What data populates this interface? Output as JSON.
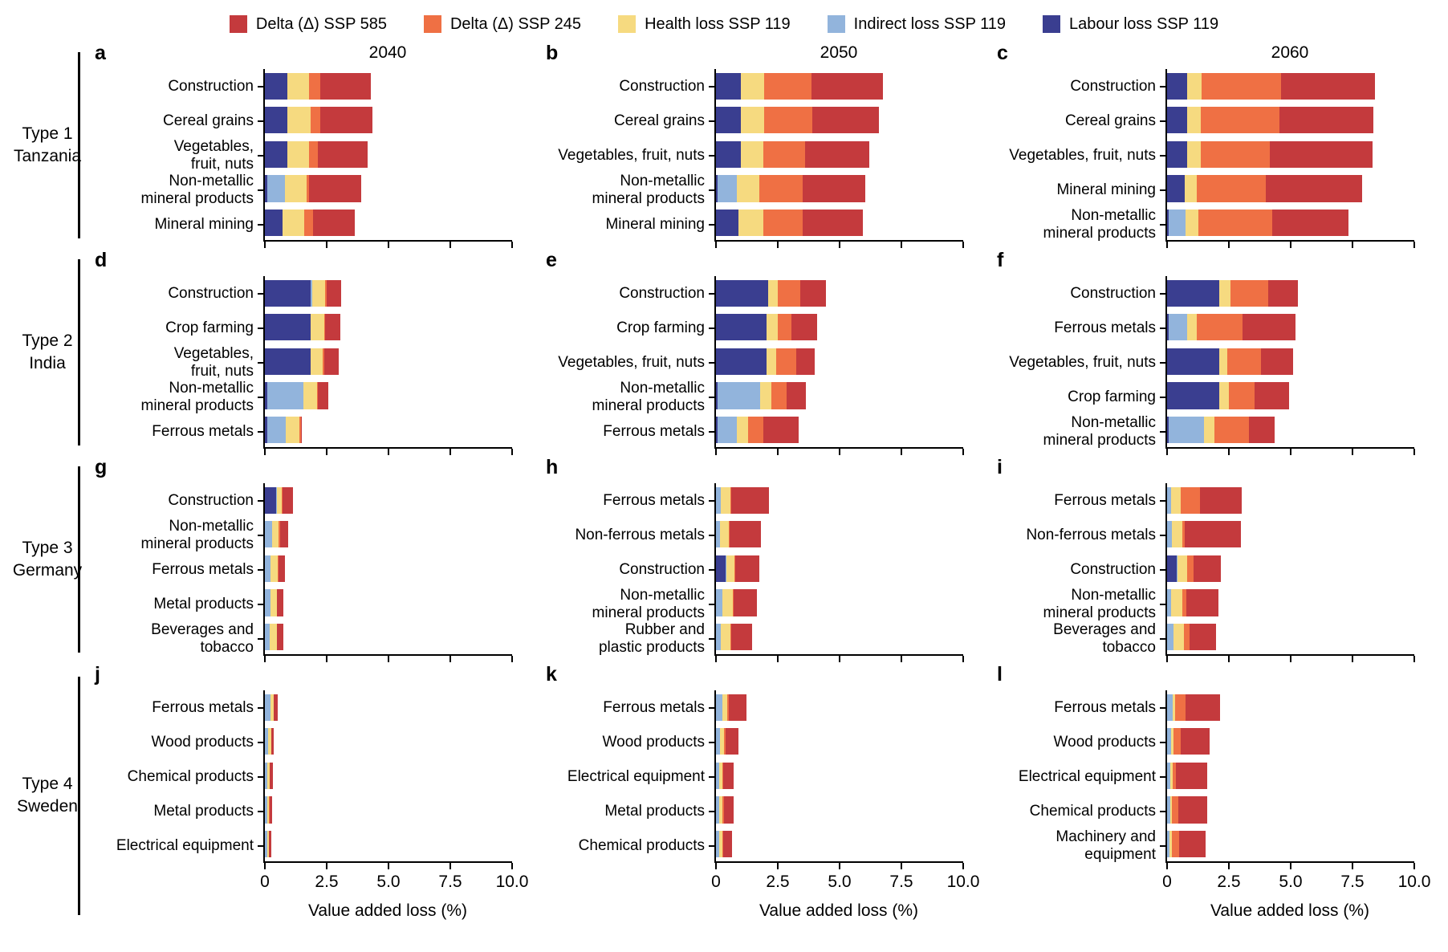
{
  "legend": [
    {
      "label": "Delta (Δ) SSP 585",
      "color": "delta585"
    },
    {
      "label": "Delta (Δ) SSP 245",
      "color": "delta245"
    },
    {
      "label": "Health loss SSP 119",
      "color": "health"
    },
    {
      "label": "Indirect loss SSP 119",
      "color": "indirect"
    },
    {
      "label": "Labour loss SSP 119",
      "color": "labour"
    }
  ],
  "colors": {
    "delta585": "#c43a3d",
    "delta245": "#ef7044",
    "health": "#f6da80",
    "indirect": "#92b4dc",
    "labour": "#3a3e90"
  },
  "columns": [
    "2040",
    "2050",
    "2060"
  ],
  "rows": [
    {
      "type": "Type 1",
      "country": "Tanzania"
    },
    {
      "type": "Type 2",
      "country": "India"
    },
    {
      "type": "Type 3",
      "country": "Germany"
    },
    {
      "type": "Type 4",
      "country": "Sweden"
    }
  ],
  "axis": {
    "label": "Value added loss (%)",
    "max": 10,
    "tick_values": [
      0,
      2.5,
      5.0,
      7.5,
      10.0
    ],
    "tick_labels": [
      "0",
      "2.5",
      "5.0",
      "7.5",
      "10.0"
    ]
  },
  "chart_data": {
    "type": "bar",
    "orientation": "horizontal",
    "stacked": true,
    "xlim": [
      0,
      10
    ],
    "series_order": [
      "labour",
      "indirect",
      "health",
      "delta245",
      "delta585"
    ],
    "series_names": {
      "labour": "Labour loss SSP 119",
      "indirect": "Indirect loss SSP 119",
      "health": "Health loss SSP 119",
      "delta245": "Delta (Δ) SSP 245",
      "delta585": "Delta (Δ) SSP 585"
    },
    "panels": [
      {
        "id": "a",
        "year": "2040",
        "group": "Type 1 Tanzania",
        "bars": [
          {
            "label": "Construction",
            "labour": 0.9,
            "indirect": 0,
            "health": 0.9,
            "delta245": 0.45,
            "delta585": 2.05
          },
          {
            "label": "Cereal grains",
            "labour": 0.9,
            "indirect": 0,
            "health": 0.95,
            "delta245": 0.4,
            "delta585": 2.1
          },
          {
            "label": "Vegetables,\nfruit, nuts",
            "labour": 0.9,
            "indirect": 0,
            "health": 0.9,
            "delta245": 0.35,
            "delta585": 2.0
          },
          {
            "label": "Non-metallic\nmineral products",
            "labour": 0.1,
            "indirect": 0.7,
            "health": 0.9,
            "delta245": 0.1,
            "delta585": 2.1
          },
          {
            "label": "Mineral mining",
            "labour": 0.7,
            "indirect": 0,
            "health": 0.9,
            "delta245": 0.35,
            "delta585": 1.7
          }
        ]
      },
      {
        "id": "b",
        "year": "2050",
        "group": "Type 1 Tanzania",
        "bars": [
          {
            "label": "Construction",
            "labour": 1.0,
            "indirect": 0,
            "health": 0.95,
            "delta245": 1.9,
            "delta585": 2.9
          },
          {
            "label": "Cereal grains",
            "labour": 1.0,
            "indirect": 0,
            "health": 0.95,
            "delta245": 1.95,
            "delta585": 2.7
          },
          {
            "label": "Vegetables, fruit, nuts",
            "labour": 1.0,
            "indirect": 0,
            "health": 0.9,
            "delta245": 1.7,
            "delta585": 2.6
          },
          {
            "label": "Non-metallic\nmineral products",
            "labour": 0.05,
            "indirect": 0.8,
            "health": 0.9,
            "delta245": 1.75,
            "delta585": 2.55
          },
          {
            "label": "Mineral mining",
            "labour": 0.9,
            "indirect": 0,
            "health": 1.0,
            "delta245": 1.6,
            "delta585": 2.45
          }
        ]
      },
      {
        "id": "c",
        "year": "2060",
        "group": "Type 1 Tanzania",
        "bars": [
          {
            "label": "Construction",
            "labour": 0.8,
            "indirect": 0,
            "health": 0.6,
            "delta245": 3.2,
            "delta585": 3.8
          },
          {
            "label": "Cereal grains",
            "labour": 0.8,
            "indirect": 0,
            "health": 0.55,
            "delta245": 3.2,
            "delta585": 3.8
          },
          {
            "label": "Vegetables, fruit, nuts",
            "labour": 0.8,
            "indirect": 0,
            "health": 0.55,
            "delta245": 2.8,
            "delta585": 4.15
          },
          {
            "label": "Mineral mining",
            "labour": 0.7,
            "indirect": 0,
            "health": 0.5,
            "delta245": 2.8,
            "delta585": 3.9
          },
          {
            "label": "Non-metallic\nmineral products",
            "labour": 0.05,
            "indirect": 0.7,
            "health": 0.5,
            "delta245": 3.0,
            "delta585": 3.1
          }
        ]
      },
      {
        "id": "d",
        "year": "2040",
        "group": "Type 2 India",
        "bars": [
          {
            "label": "Construction",
            "labour": 1.85,
            "indirect": 0.05,
            "health": 0.55,
            "delta245": 0.05,
            "delta585": 0.6
          },
          {
            "label": "Crop farming",
            "labour": 1.85,
            "indirect": 0,
            "health": 0.55,
            "delta245": 0.05,
            "delta585": 0.6
          },
          {
            "label": "Vegetables,\nfruit, nuts",
            "labour": 1.85,
            "indirect": 0,
            "health": 0.5,
            "delta245": 0.05,
            "delta585": 0.6
          },
          {
            "label": "Non-metallic\nmineral products",
            "labour": 0.1,
            "indirect": 1.45,
            "health": 0.55,
            "delta245": 0.05,
            "delta585": 0.4
          },
          {
            "label": "Ferrous metals",
            "labour": 0.1,
            "indirect": 0.75,
            "health": 0.55,
            "delta245": 0.05,
            "delta585": 0.05
          }
        ]
      },
      {
        "id": "e",
        "year": "2050",
        "group": "Type 2 India",
        "bars": [
          {
            "label": "Construction",
            "labour": 2.1,
            "indirect": 0,
            "health": 0.4,
            "delta245": 0.9,
            "delta585": 1.05
          },
          {
            "label": "Crop farming",
            "labour": 2.05,
            "indirect": 0,
            "health": 0.45,
            "delta245": 0.55,
            "delta585": 1.05
          },
          {
            "label": "Vegetables, fruit, nuts",
            "labour": 2.05,
            "indirect": 0,
            "health": 0.4,
            "delta245": 0.8,
            "delta585": 0.75
          },
          {
            "label": "Non-metallic\nmineral products",
            "labour": 0.05,
            "indirect": 1.75,
            "health": 0.45,
            "delta245": 0.6,
            "delta585": 0.8
          },
          {
            "label": "Ferrous metals",
            "labour": 0.05,
            "indirect": 0.8,
            "health": 0.45,
            "delta245": 0.6,
            "delta585": 1.45
          }
        ]
      },
      {
        "id": "f",
        "year": "2060",
        "group": "Type 2 India",
        "bars": [
          {
            "label": "Construction",
            "labour": 2.1,
            "indirect": 0,
            "health": 0.45,
            "delta245": 1.55,
            "delta585": 1.2
          },
          {
            "label": "Ferrous metals",
            "labour": 0.05,
            "indirect": 0.75,
            "health": 0.4,
            "delta245": 1.85,
            "delta585": 2.15
          },
          {
            "label": "Vegetables, fruit, nuts",
            "labour": 2.1,
            "indirect": 0,
            "health": 0.35,
            "delta245": 1.35,
            "delta585": 1.3
          },
          {
            "label": "Crop farming",
            "labour": 2.1,
            "indirect": 0,
            "health": 0.4,
            "delta245": 1.05,
            "delta585": 1.4
          },
          {
            "label": "Non-metallic\nmineral products",
            "labour": 0.05,
            "indirect": 1.45,
            "health": 0.4,
            "delta245": 1.4,
            "delta585": 1.05
          }
        ]
      },
      {
        "id": "g",
        "year": "2040",
        "group": "Type 3 Germany",
        "bars": [
          {
            "label": "Construction",
            "labour": 0.45,
            "indirect": 0.05,
            "health": 0.18,
            "delta245": 0.04,
            "delta585": 0.4
          },
          {
            "label": "Non-metallic\nmineral products",
            "labour": 0,
            "indirect": 0.3,
            "health": 0.28,
            "delta245": 0.04,
            "delta585": 0.35
          },
          {
            "label": "Ferrous metals",
            "labour": 0,
            "indirect": 0.25,
            "health": 0.32,
            "delta245": 0.03,
            "delta585": 0.3
          },
          {
            "label": "Metal products",
            "labour": 0,
            "indirect": 0.25,
            "health": 0.3,
            "delta245": 0.03,
            "delta585": 0.28
          },
          {
            "label": "Beverages and tobacco",
            "labour": 0,
            "indirect": 0.23,
            "health": 0.32,
            "delta245": 0.03,
            "delta585": 0.28
          }
        ]
      },
      {
        "id": "h",
        "year": "2050",
        "group": "Type 3 Germany",
        "bars": [
          {
            "label": "Ferrous metals",
            "labour": 0,
            "indirect": 0.18,
            "health": 0.4,
            "delta245": 0.05,
            "delta585": 1.5
          },
          {
            "label": "Non-ferrous metals",
            "labour": 0,
            "indirect": 0.16,
            "health": 0.35,
            "delta245": 0.05,
            "delta585": 1.25
          },
          {
            "label": "Construction",
            "labour": 0.4,
            "indirect": 0.03,
            "health": 0.33,
            "delta245": 0.03,
            "delta585": 0.97
          },
          {
            "label": "Non-metallic\nmineral products",
            "labour": 0,
            "indirect": 0.25,
            "health": 0.43,
            "delta245": 0.03,
            "delta585": 0.95
          },
          {
            "label": "Rubber and\nplastic products",
            "labour": 0,
            "indirect": 0.18,
            "health": 0.4,
            "delta245": 0.03,
            "delta585": 0.85
          }
        ]
      },
      {
        "id": "i",
        "year": "2060",
        "group": "Type 3 Germany",
        "bars": [
          {
            "label": "Ferrous metals",
            "labour": 0,
            "indirect": 0.16,
            "health": 0.4,
            "delta245": 0.77,
            "delta585": 1.7
          },
          {
            "label": "Non-ferrous metals",
            "labour": 0,
            "indirect": 0.18,
            "health": 0.45,
            "delta245": 0.1,
            "delta585": 2.25
          },
          {
            "label": "Construction",
            "labour": 0.38,
            "indirect": 0.03,
            "health": 0.4,
            "delta245": 0.25,
            "delta585": 1.1
          },
          {
            "label": "Non-metallic\nmineral products",
            "labour": 0,
            "indirect": 0.16,
            "health": 0.45,
            "delta245": 0.18,
            "delta585": 1.3
          },
          {
            "label": "Beverages and tobacco",
            "labour": 0,
            "indirect": 0.26,
            "health": 0.43,
            "delta245": 0.23,
            "delta585": 1.05
          }
        ]
      },
      {
        "id": "j",
        "year": "2040",
        "group": "Type 4 Sweden",
        "bars": [
          {
            "label": "Ferrous metals",
            "labour": 0,
            "indirect": 0.3,
            "health": 0.18,
            "delta245": 0.03,
            "delta585": 0.2
          },
          {
            "label": "Wood products",
            "labour": 0,
            "indirect": 0.22,
            "health": 0.18,
            "delta245": 0.03,
            "delta585": 0.18
          },
          {
            "label": "Chemical products",
            "labour": 0,
            "indirect": 0.18,
            "health": 0.15,
            "delta245": 0.03,
            "delta585": 0.2
          },
          {
            "label": "Metal products",
            "labour": 0,
            "indirect": 0.18,
            "health": 0.15,
            "delta245": 0.03,
            "delta585": 0.18
          },
          {
            "label": "Electrical equipment",
            "labour": 0,
            "indirect": 0.18,
            "health": 0.13,
            "delta245": 0.03,
            "delta585": 0.18
          }
        ]
      },
      {
        "id": "k",
        "year": "2050",
        "group": "Type 4 Sweden",
        "bars": [
          {
            "label": "Ferrous metals",
            "labour": 0,
            "indirect": 0.27,
            "health": 0.2,
            "delta245": 0.05,
            "delta585": 0.7
          },
          {
            "label": "Wood products",
            "labour": 0,
            "indirect": 0.16,
            "health": 0.19,
            "delta245": 0.05,
            "delta585": 0.55
          },
          {
            "label": "Electrical equipment",
            "labour": 0,
            "indirect": 0.15,
            "health": 0.15,
            "delta245": 0.05,
            "delta585": 0.5
          },
          {
            "label": "Metal products",
            "labour": 0,
            "indirect": 0.15,
            "health": 0.17,
            "delta245": 0.05,
            "delta585": 0.48
          },
          {
            "label": "Chemical products",
            "labour": 0,
            "indirect": 0.15,
            "health": 0.16,
            "delta245": 0.05,
            "delta585": 0.45
          }
        ]
      },
      {
        "id": "l",
        "year": "2060",
        "group": "Type 4 Sweden",
        "bars": [
          {
            "label": "Ferrous metals",
            "labour": 0,
            "indirect": 0.24,
            "health": 0.1,
            "delta245": 0.42,
            "delta585": 1.38
          },
          {
            "label": "Wood products",
            "labour": 0,
            "indirect": 0.16,
            "health": 0.1,
            "delta245": 0.3,
            "delta585": 1.15
          },
          {
            "label": "Electrical equipment",
            "labour": 0,
            "indirect": 0.14,
            "health": 0.08,
            "delta245": 0.15,
            "delta585": 1.25
          },
          {
            "label": "Chemical products",
            "labour": 0,
            "indirect": 0.13,
            "health": 0.08,
            "delta245": 0.25,
            "delta585": 1.15
          },
          {
            "label": "Machinery and\nequipment",
            "labour": 0,
            "indirect": 0.1,
            "health": 0.1,
            "delta245": 0.3,
            "delta585": 1.05
          }
        ]
      }
    ]
  }
}
